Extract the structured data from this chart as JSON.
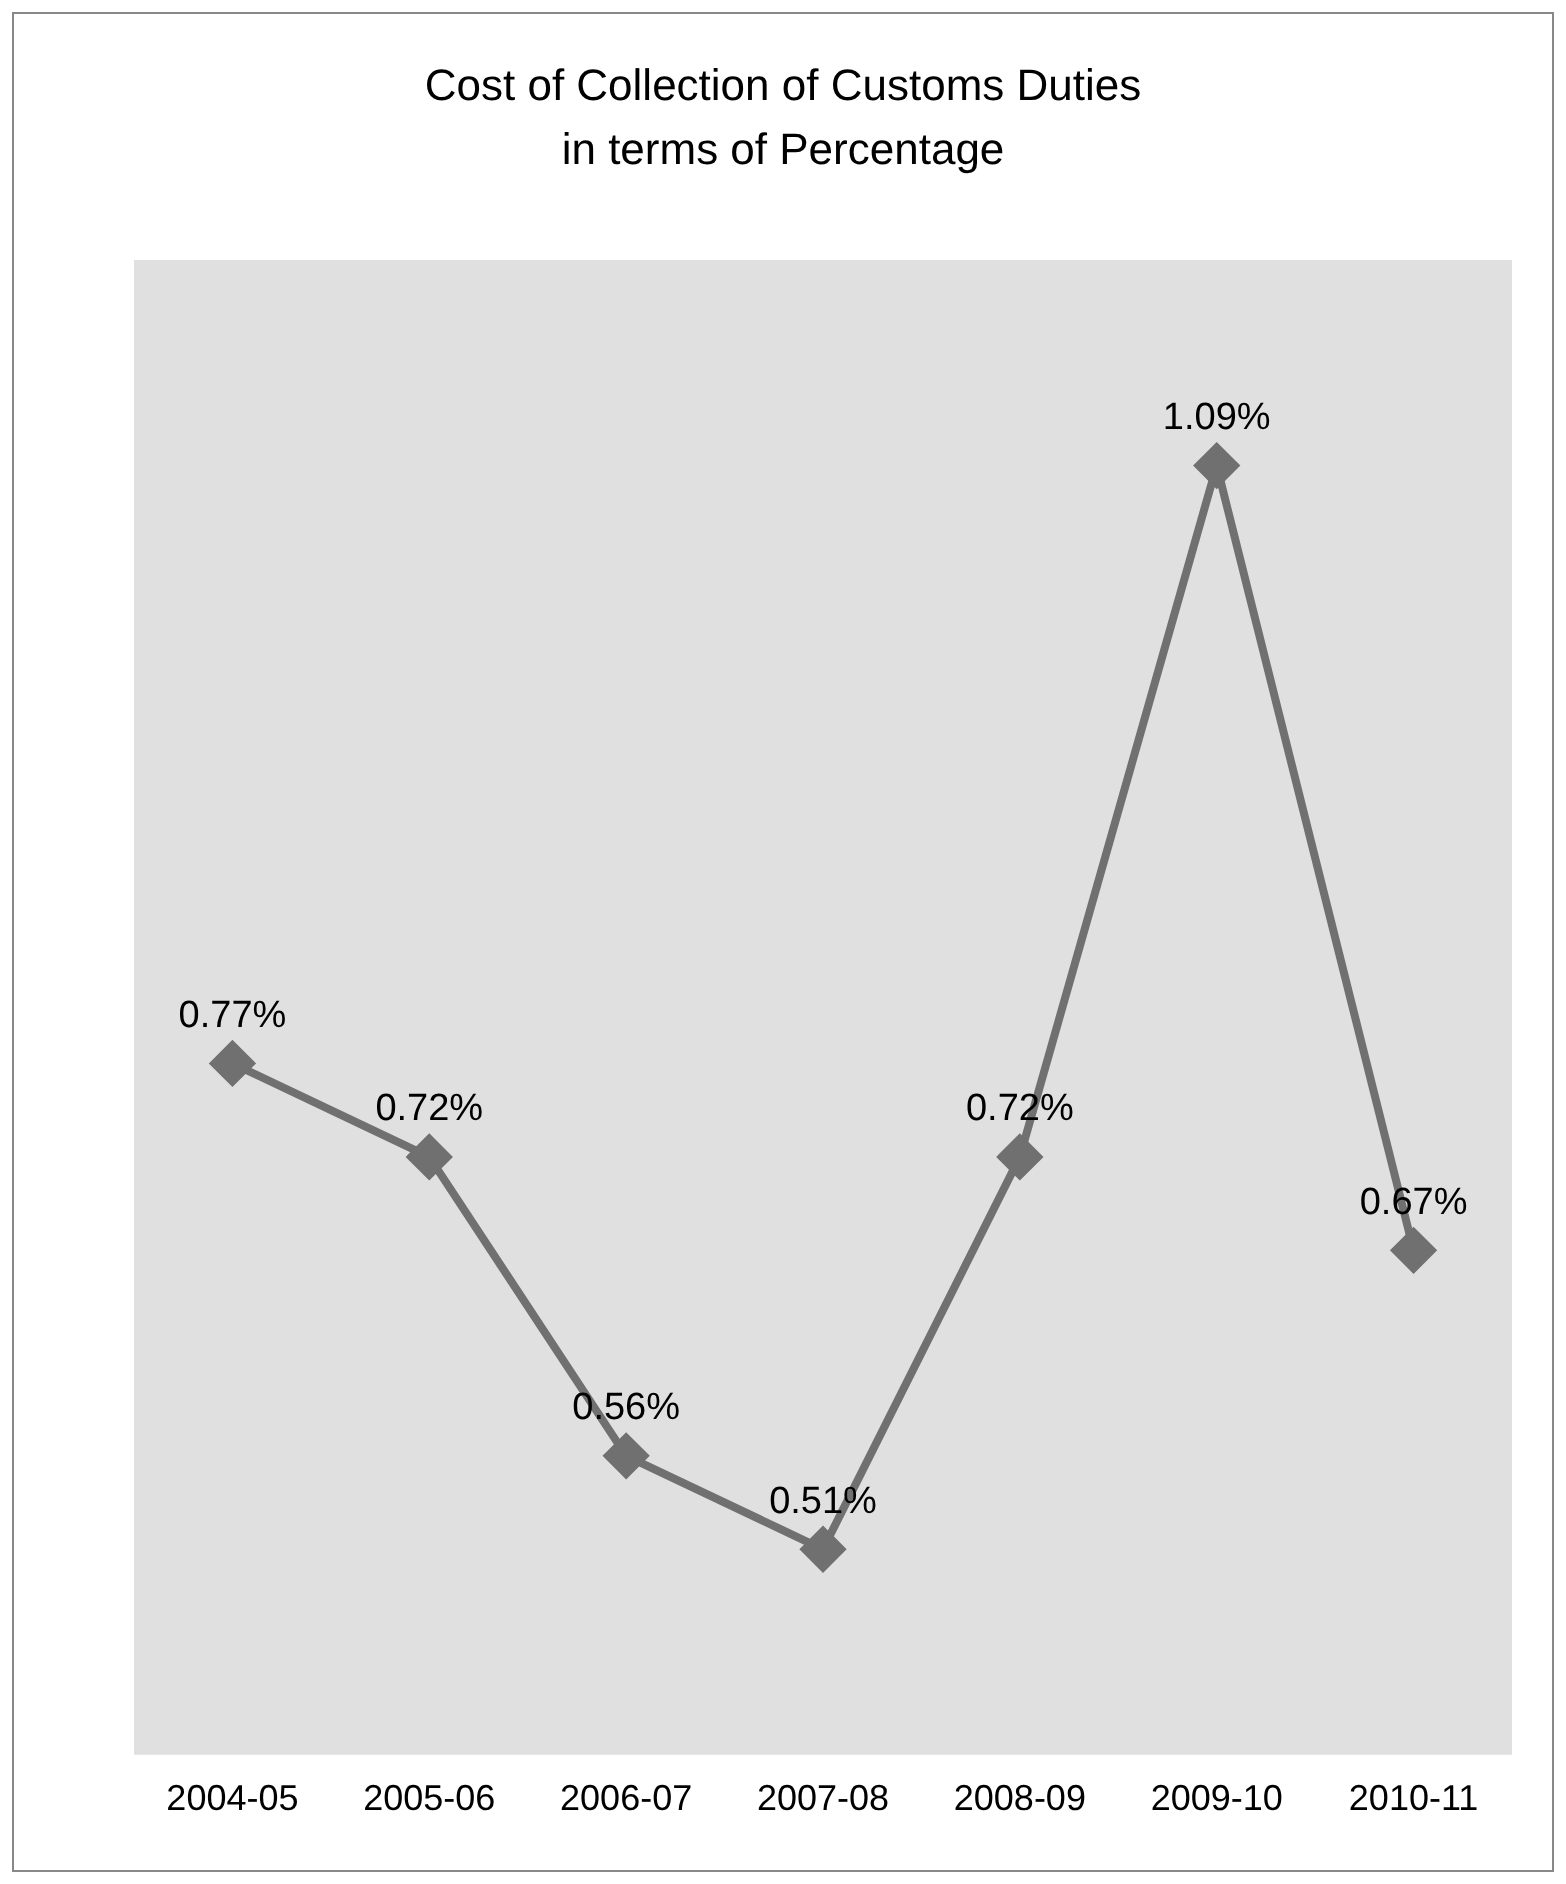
{
  "chart_data": {
    "type": "line",
    "title": "Cost of Collection of Customs Duties",
    "subtitle": "in terms of Percentage",
    "categories": [
      "2004-05",
      "2005-06",
      "2006-07",
      "2007-08",
      "2008-09",
      "2009-10",
      "2010-11"
    ],
    "series": [
      {
        "color": "#707070",
        "values": [
          0.77,
          0.72,
          0.56,
          0.51,
          0.72,
          1.09,
          0.67
        ],
        "value_labels": [
          "0.77%",
          "0.72%",
          "0.56%",
          "0.51%",
          "0.72%",
          "1.09%",
          "0.67%"
        ]
      }
    ],
    "marker": "diamond",
    "grid": false,
    "legend": false,
    "tick_labels": "x"
  }
}
